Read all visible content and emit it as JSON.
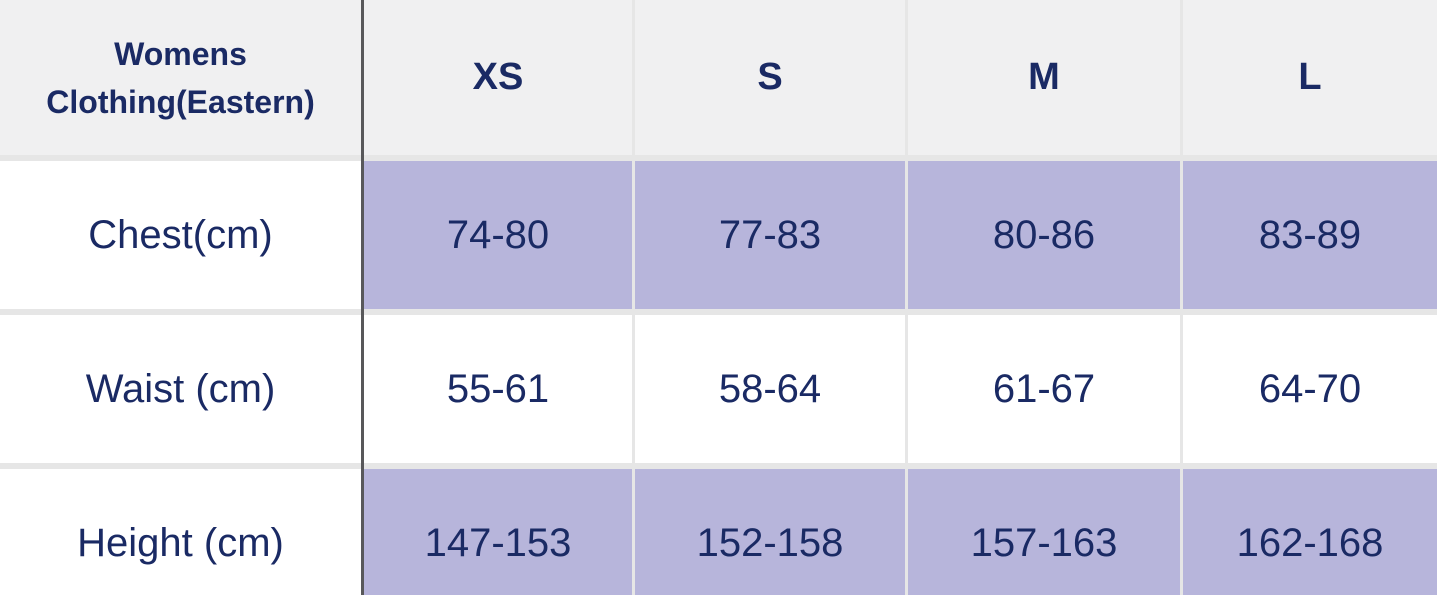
{
  "size_chart": {
    "title": "Womens Clothing(Eastern)",
    "columns": [
      "XS",
      "S",
      "M",
      "L"
    ],
    "rows": [
      {
        "label": "Chest(cm)",
        "shaded": true,
        "values": [
          "74-80",
          "77-83",
          "80-86",
          "83-89"
        ]
      },
      {
        "label": "Waist (cm)",
        "shaded": false,
        "values": [
          "55-61",
          "58-64",
          "61-67",
          "64-70"
        ]
      },
      {
        "label": "Height (cm)",
        "shaded": true,
        "values": [
          "147-153",
          "152-158",
          "157-163",
          "162-168"
        ]
      }
    ],
    "colors": {
      "text_navy": "#1a2a64",
      "header_bg": "#f0f0f1",
      "shaded_cell": "#b7b5db",
      "divider_dark": "#58585a",
      "grid_line": "#e6e6e6"
    }
  }
}
